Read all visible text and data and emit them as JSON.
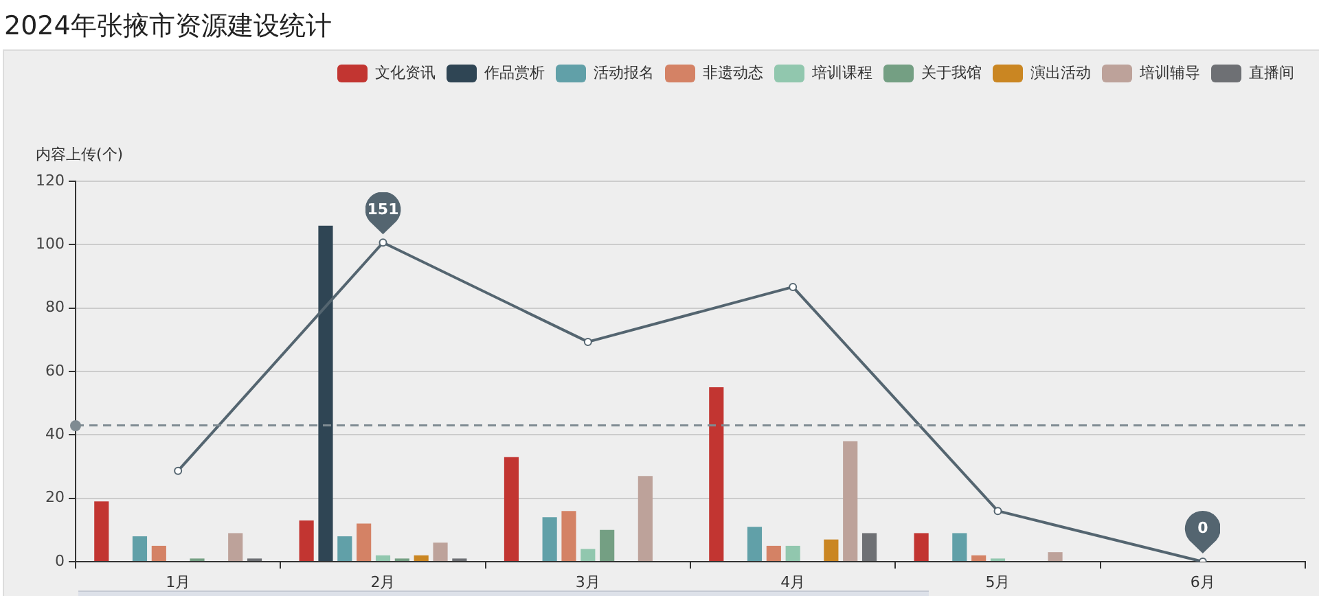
{
  "chart_data": {
    "type": "bar",
    "title": "2024年张掖市资源建设统计",
    "ylabel": "内容上传(个)",
    "categories": [
      "1月",
      "2月",
      "3月",
      "4月",
      "5月",
      "6月"
    ],
    "series": [
      {
        "name": "文化资讯",
        "color": "#c23531",
        "values": [
          19,
          13,
          33,
          55,
          9,
          0
        ]
      },
      {
        "name": "作品赏析",
        "color": "#2f4554",
        "values": [
          0,
          106,
          0,
          0,
          0,
          0
        ]
      },
      {
        "name": "活动报名",
        "color": "#61a0a8",
        "values": [
          8,
          8,
          14,
          11,
          9,
          0
        ]
      },
      {
        "name": "非遗动态",
        "color": "#d48265",
        "values": [
          5,
          12,
          16,
          5,
          2,
          0
        ]
      },
      {
        "name": "培训课程",
        "color": "#91c7ae",
        "values": [
          0,
          2,
          4,
          5,
          1,
          0
        ]
      },
      {
        "name": "关于我馆",
        "color": "#749f83",
        "values": [
          1,
          1,
          10,
          0,
          0,
          0
        ]
      },
      {
        "name": "演出活动",
        "color": "#ca8622",
        "values": [
          0,
          2,
          0,
          7,
          0,
          0
        ]
      },
      {
        "name": "培训辅导",
        "color": "#bda29a",
        "values": [
          9,
          6,
          27,
          38,
          3,
          0
        ]
      },
      {
        "name": "直播间",
        "color": "#6e7074",
        "values": [
          1,
          1,
          0,
          9,
          0,
          0
        ]
      },
      {
        "type": "line",
        "color": "#546570",
        "axis": "y2",
        "values": [
          43,
          151,
          104,
          130,
          24,
          0
        ],
        "value_labels": [
          null,
          "151",
          null,
          null,
          null,
          "0"
        ]
      }
    ],
    "ylim": [
      0,
      120
    ],
    "yticks": [
      0,
      20,
      40,
      60,
      80,
      100,
      120
    ],
    "y2lim": [
      0,
      180
    ],
    "ref_lines": [
      {
        "axis": "y",
        "value": 43,
        "color": "#7f8b92",
        "line_style": "dashed"
      }
    ],
    "grid": "y",
    "legend": "top right",
    "marker": "circle"
  }
}
